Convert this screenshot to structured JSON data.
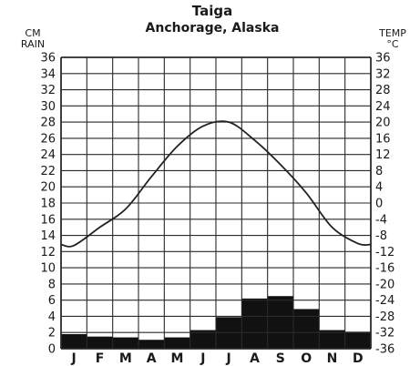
{
  "chart_data": {
    "type": "climograph",
    "title": "Taiga",
    "subtitle": "Anchorage, Alaska",
    "left_axis": {
      "label_lines": [
        "CM",
        "RAIN"
      ],
      "range": [
        0,
        36
      ],
      "ticks": [
        "0",
        "2",
        "4",
        "6",
        "8",
        "10",
        "12",
        "14",
        "16",
        "18",
        "20",
        "22",
        "24",
        "26",
        "28",
        "30",
        "32",
        "34",
        "36"
      ]
    },
    "right_axis": {
      "label_lines": [
        "TEMP",
        "°C"
      ],
      "range": [
        -36,
        36
      ],
      "ticks": [
        "-36",
        "-32",
        "-28",
        "-24",
        "-20",
        "-16",
        "-12",
        "-8",
        "-4",
        "0",
        "4",
        "8",
        "12",
        "16",
        "20",
        "24",
        "28",
        "32",
        "36"
      ]
    },
    "categories": [
      "J",
      "F",
      "M",
      "A",
      "M",
      "J",
      "J",
      "A",
      "S",
      "O",
      "N",
      "D"
    ],
    "series": [
      {
        "kind": "precipitation",
        "display": "bar",
        "axis": "left",
        "color": "#111111",
        "values": [
          1.8,
          1.5,
          1.4,
          1.1,
          1.4,
          2.3,
          3.9,
          6.2,
          6.5,
          4.9,
          2.3,
          2.1
        ]
      },
      {
        "kind": "temperature",
        "display": "line",
        "axis": "right",
        "color": "#222222",
        "values": [
          -10.5,
          -6.0,
          -1.5,
          6.5,
          14.0,
          19.0,
          20.0,
          15.5,
          9.5,
          2.5,
          -6.0,
          -10.0
        ]
      }
    ],
    "grid": true,
    "legend": "none"
  }
}
